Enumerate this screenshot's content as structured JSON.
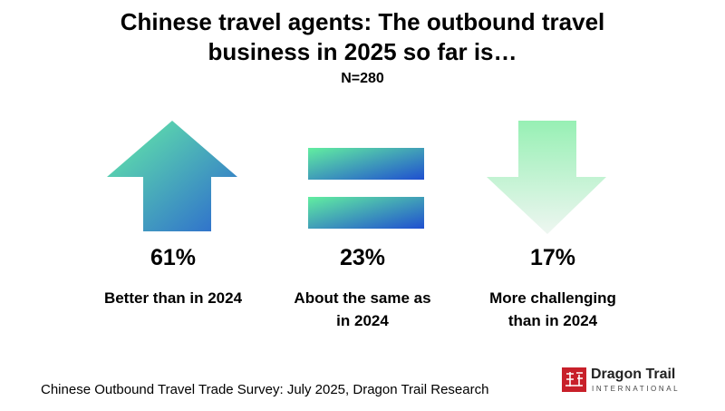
{
  "header": {
    "title": "Chinese travel agents: The outbound travel business in 2025 so far is…",
    "subtitle": "N=280"
  },
  "items": [
    {
      "value": "61%",
      "label": "Better than in 2024"
    },
    {
      "value": "23%",
      "label": "About the same as in 2024"
    },
    {
      "value": "17%",
      "label": "More challenging than in 2024"
    }
  ],
  "footer": {
    "source": "Chinese Outbound Travel Trade Survey: July 2025, Dragon Trail Research",
    "brand": "Dragon Trail",
    "brand_sub": "INTERNATIONAL"
  }
}
